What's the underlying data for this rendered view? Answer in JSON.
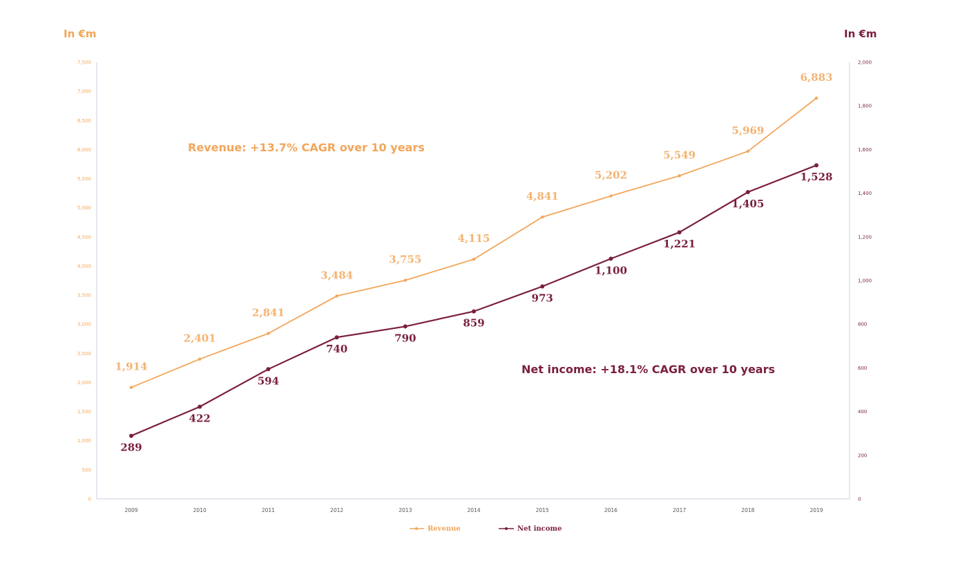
{
  "colors": {
    "revenue": "#F2A65A",
    "net_income": "#7A1F3D",
    "axis": "#C9D3E0"
  },
  "chart_data": {
    "type": "line",
    "left_unit_label": "In €m",
    "right_unit_label": "In €m",
    "x": [
      "2009",
      "2010",
      "2011",
      "2012",
      "2013",
      "2014",
      "2015",
      "2016",
      "2017",
      "2018",
      "2019"
    ],
    "left_axis": {
      "ylim": [
        0,
        7500
      ],
      "ticks": [
        "0",
        "500",
        "1,000",
        "1,500",
        "2,000",
        "2,500",
        "3,000",
        "3,500",
        "4,000",
        "4,500",
        "5,000",
        "5,500",
        "6,000",
        "6,500",
        "7,000",
        "7,500"
      ]
    },
    "right_axis": {
      "ylim": [
        0,
        2000
      ],
      "ticks": [
        "0",
        "200",
        "400",
        "600",
        "800",
        "1,000",
        "1,200",
        "1,400",
        "1,600",
        "1,800",
        "2,000"
      ]
    },
    "series": [
      {
        "name": "Revenue",
        "axis": "left",
        "values": [
          1914,
          2401,
          2841,
          3484,
          3755,
          4115,
          4841,
          5202,
          5549,
          5969,
          6883
        ],
        "labels": [
          "1,914",
          "2,401",
          "2,841",
          "3,484",
          "3,755",
          "4,115",
          "4,841",
          "5,202",
          "5,549",
          "5,969",
          "6,883"
        ]
      },
      {
        "name": "Net income",
        "axis": "right",
        "values": [
          289,
          422,
          594,
          740,
          790,
          859,
          973,
          1100,
          1221,
          1405,
          1528
        ],
        "labels": [
          "289",
          "422",
          "594",
          "740",
          "790",
          "859",
          "973",
          "1,100",
          "1,221",
          "1,405",
          "1,528"
        ]
      }
    ],
    "annotations": {
      "revenue": "Revenue: +13.7% CAGR over 10 years",
      "net_income": "Net income: +18.1% CAGR over 10 years"
    },
    "grid": false,
    "legend": "bottom"
  }
}
